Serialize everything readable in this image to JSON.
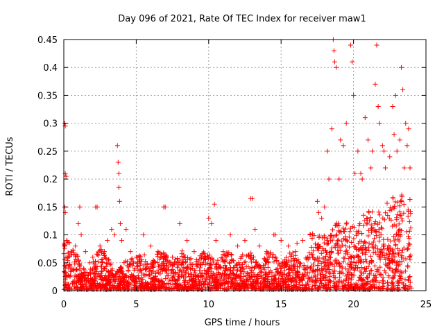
{
  "chart_data": {
    "type": "scatter",
    "title": "Day 096 of 2021, Rate Of TEC Index for receiver maw1",
    "xlabel": "GPS time / hours",
    "ylabel": "ROTI / TECUs",
    "xlim": [
      0,
      25
    ],
    "ylim": [
      0,
      0.45
    ],
    "xticks": [
      "0",
      "5",
      "10",
      "15",
      "20",
      "25"
    ],
    "yticks": [
      "0",
      "0.05",
      "0.1",
      "0.15",
      "0.2",
      "0.25",
      "0.3",
      "0.35",
      "0.4",
      "0.45"
    ],
    "grid": true,
    "marker": "+",
    "color": "#ff0000",
    "series": [
      {
        "x": [
          0.05,
          0.1,
          0.1,
          0.15,
          0.1,
          0.05,
          0.2,
          0.3,
          0.5,
          0.8,
          1.0,
          1.2,
          1.5,
          1.8,
          2.0,
          2.3,
          2.5,
          2.8,
          3.0,
          3.3,
          3.5,
          3.7,
          3.75,
          3.8,
          3.8,
          3.85,
          3.9,
          4.0,
          4.3,
          4.6,
          5.0,
          5.5,
          6.0,
          6.5,
          7.0,
          7.5,
          8.0,
          8.5,
          9.0,
          9.5,
          10.0,
          10.2,
          10.5,
          11.0,
          11.5,
          12.0,
          12.5,
          13.0,
          13.2,
          13.5,
          14.0,
          14.5,
          15.0,
          15.5,
          16.0,
          16.5,
          17.0,
          17.5,
          17.8,
          18.0,
          18.2,
          18.5,
          18.6,
          18.65,
          18.7,
          18.8,
          19.0,
          19.3,
          19.5,
          19.8,
          19.9,
          20.0,
          20.1,
          20.3,
          20.5,
          20.8,
          21.0,
          21.3,
          21.5,
          21.6,
          21.7,
          21.8,
          22.0,
          22.2,
          22.5,
          22.8,
          22.9,
          23.0,
          23.2,
          23.3,
          23.5,
          23.6,
          23.7,
          23.8,
          23.9,
          1.1,
          2.2,
          6.9,
          10.4,
          12.9,
          14.6,
          16.1,
          17.6,
          18.3,
          19.1,
          20.6,
          21.2,
          22.1,
          22.7,
          23.4
        ],
        "y": [
          0.3,
          0.295,
          0.21,
          0.205,
          0.14,
          0.15,
          0.09,
          0.06,
          0.07,
          0.08,
          0.12,
          0.1,
          0.07,
          0.05,
          0.06,
          0.15,
          0.08,
          0.07,
          0.09,
          0.11,
          0.1,
          0.26,
          0.23,
          0.21,
          0.185,
          0.16,
          0.12,
          0.09,
          0.11,
          0.07,
          0.06,
          0.1,
          0.08,
          0.07,
          0.15,
          0.06,
          0.12,
          0.09,
          0.07,
          0.06,
          0.13,
          0.12,
          0.09,
          0.07,
          0.1,
          0.08,
          0.09,
          0.165,
          0.11,
          0.08,
          0.07,
          0.1,
          0.09,
          0.08,
          0.07,
          0.09,
          0.1,
          0.16,
          0.13,
          0.15,
          0.25,
          0.29,
          0.45,
          0.43,
          0.41,
          0.4,
          0.2,
          0.26,
          0.3,
          0.44,
          0.41,
          0.35,
          0.21,
          0.25,
          0.21,
          0.31,
          0.27,
          0.25,
          0.37,
          0.44,
          0.33,
          0.3,
          0.26,
          0.22,
          0.24,
          0.28,
          0.35,
          0.25,
          0.27,
          0.4,
          0.22,
          0.3,
          0.26,
          0.29,
          0.22,
          0.15,
          0.15,
          0.15,
          0.155,
          0.165,
          0.1,
          0.085,
          0.14,
          0.2,
          0.27,
          0.2,
          0.22,
          0.25,
          0.33,
          0.36
        ]
      }
    ]
  }
}
